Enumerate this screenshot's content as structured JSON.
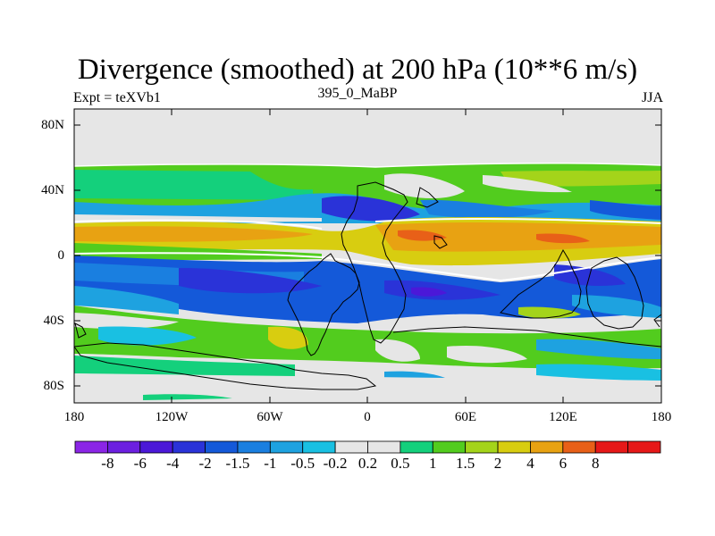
{
  "title": "Divergence (smoothed) at 200 hPa (10**6 m/s)",
  "subtitle_left": "Expt = teXVb1",
  "subtitle_center": "395_0_MaBP",
  "subtitle_right": "JJA",
  "map": {
    "projection": "cylindrical equidistant",
    "lon_range": [
      -180,
      180
    ],
    "lat_range": [
      -90,
      90
    ],
    "lat_ticks": [
      "80N",
      "40N",
      "0",
      "40S",
      "80S"
    ],
    "lon_ticks": [
      "180",
      "120W",
      "60W",
      "0",
      "60E",
      "120E",
      "180"
    ]
  },
  "colorbar": {
    "labels": [
      "-8",
      "-6",
      "-4",
      "-2",
      "-1.5",
      "-1",
      "-0.5",
      "-0.2",
      "0.2",
      "0.5",
      "1",
      "1.5",
      "2",
      "4",
      "6",
      "8"
    ],
    "colors": [
      "#8b25e6",
      "#6c1fe0",
      "#4b18d8",
      "#2a33d8",
      "#1459d9",
      "#1a7fe0",
      "#1ea2e0",
      "#19c0e2",
      "#e6e6e6",
      "#14d07c",
      "#52cc1e",
      "#a4d41a",
      "#d8cd10",
      "#e8a212",
      "#e86018",
      "#e61818"
    ]
  }
}
